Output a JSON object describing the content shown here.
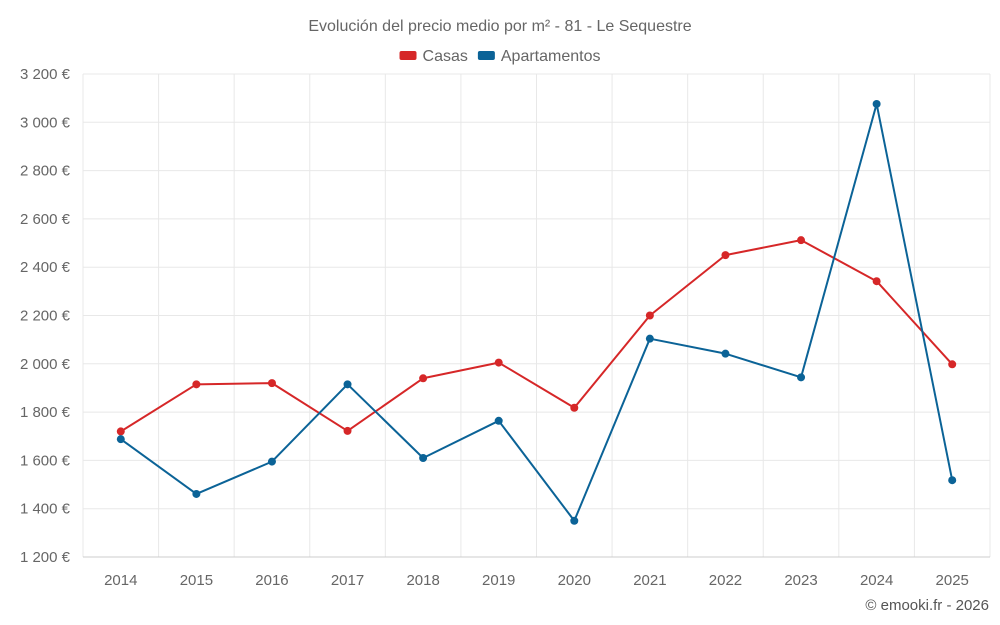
{
  "chart_data": {
    "type": "line",
    "title": "Evolución del precio medio por m² - 81 - Le Sequestre",
    "categories": [
      "2014",
      "2015",
      "2016",
      "2017",
      "2018",
      "2019",
      "2020",
      "2021",
      "2022",
      "2023",
      "2024",
      "2025"
    ],
    "series": [
      {
        "name": "Casas",
        "color": "#d62728",
        "values": [
          1720,
          1915,
          1920,
          1722,
          1940,
          2005,
          1818,
          2200,
          2450,
          2512,
          2342,
          1998
        ]
      },
      {
        "name": "Apartamentos",
        "color": "#0b6397",
        "values": [
          1688,
          1461,
          1595,
          1915,
          1610,
          1764,
          1350,
          2104,
          2042,
          1944,
          3076,
          1518
        ]
      }
    ],
    "ylim": [
      1200,
      3200
    ],
    "yticks": [
      1200,
      1400,
      1600,
      1800,
      2000,
      2200,
      2400,
      2600,
      2800,
      3000,
      3200
    ],
    "ytick_labels": [
      "1 200 €",
      "1 400 €",
      "1 600 €",
      "1 800 €",
      "2 000 €",
      "2 200 €",
      "2 400 €",
      "2 600 €",
      "2 800 €",
      "3 000 €",
      "3 200 €"
    ],
    "grid": true,
    "legend_position": "top-center",
    "credit": "© emooki.fr - 2026"
  }
}
